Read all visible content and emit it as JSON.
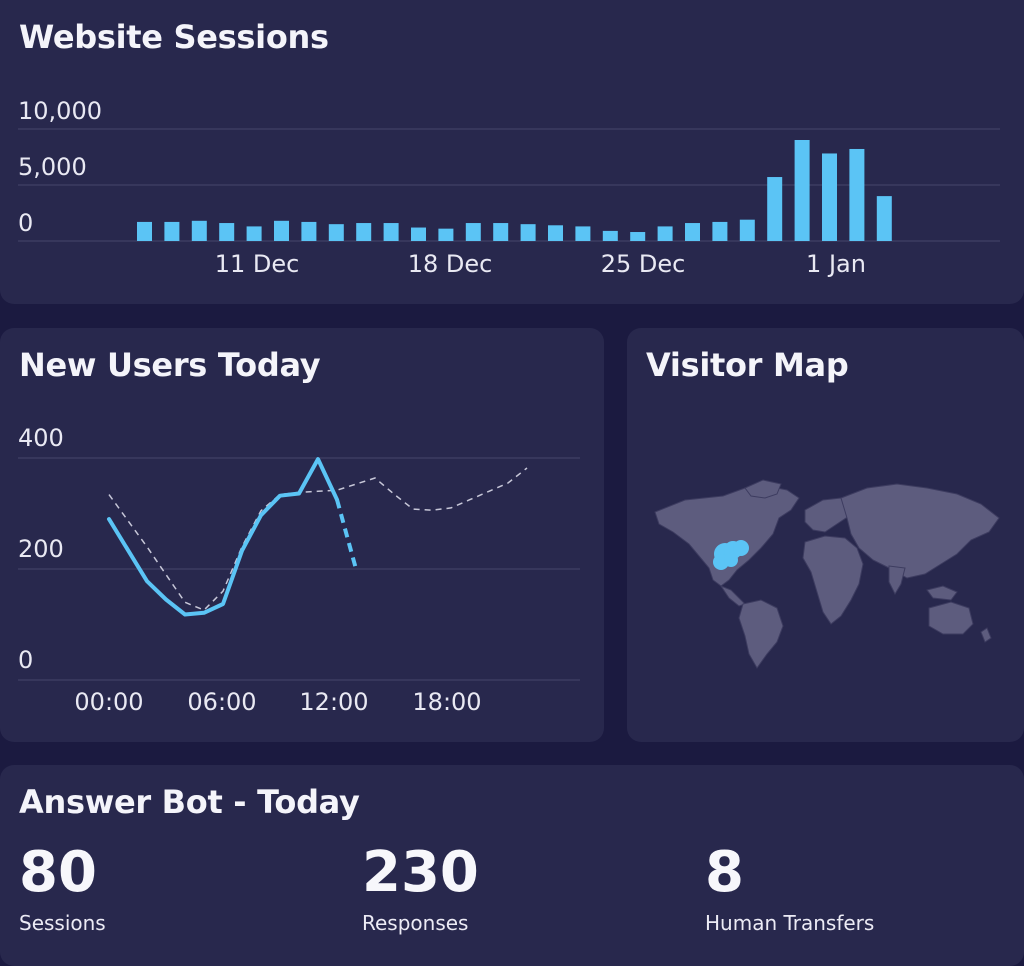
{
  "colors": {
    "background": "#1b1a40",
    "card": "#28284d",
    "accent": "#5bc4f5",
    "grid": "#46466a",
    "land": "#5d5c7e",
    "dashed": "#c7c7d8"
  },
  "website_sessions": {
    "title": "Website Sessions",
    "chart_data": {
      "type": "bar",
      "y_ticks": [
        "10,000",
        "5,000",
        "0"
      ],
      "x_ticks": [
        "11 Dec",
        "18 Dec",
        "25 Dec",
        "1 Jan"
      ],
      "ylim": [
        0,
        12000
      ],
      "values": [
        1700,
        1700,
        1800,
        1600,
        1300,
        1800,
        1700,
        1500,
        1600,
        1600,
        1200,
        1100,
        1600,
        1600,
        1500,
        1400,
        1300,
        900,
        800,
        1300,
        1600,
        1700,
        1900,
        5700,
        9000,
        7800,
        8200,
        4000
      ]
    }
  },
  "new_users_today": {
    "title": "New Users Today",
    "chart_data": {
      "type": "line",
      "y_ticks": [
        "400",
        "200",
        "0"
      ],
      "x_ticks": [
        "00:00",
        "06:00",
        "12:00",
        "18:00"
      ],
      "ylim": [
        0,
        400
      ],
      "xlim": [
        0,
        24
      ],
      "series": [
        {
          "style": "solid",
          "points": [
            [
              0,
              290
            ],
            [
              2,
              178
            ],
            [
              3,
              145
            ],
            [
              4,
              118
            ],
            [
              5,
              121
            ],
            [
              6,
              137
            ],
            [
              7,
              233
            ],
            [
              8,
              297
            ],
            [
              9,
              332
            ],
            [
              10,
              336
            ],
            [
              11,
              398
            ],
            [
              12,
              325
            ]
          ]
        },
        {
          "style": "dashed-accent",
          "points": [
            [
              12,
              325
            ],
            [
              13,
              200
            ]
          ]
        },
        {
          "style": "dashed",
          "points": [
            [
              0,
              334
            ],
            [
              2,
              240
            ],
            [
              3,
              190
            ],
            [
              4,
              140
            ],
            [
              5,
              126
            ],
            [
              6,
              160
            ],
            [
              7,
              240
            ],
            [
              8,
              305
            ],
            [
              9,
              334
            ],
            [
              10,
              338
            ],
            [
              11,
              340
            ],
            [
              12,
              342
            ],
            [
              14,
              364
            ],
            [
              15,
              335
            ],
            [
              16,
              308
            ],
            [
              17,
              306
            ],
            [
              18,
              310
            ],
            [
              19,
              325
            ],
            [
              20,
              340
            ],
            [
              21,
              355
            ],
            [
              22,
              382
            ]
          ]
        }
      ]
    }
  },
  "visitor_map": {
    "title": "Visitor Map"
  },
  "answer_bot": {
    "title": "Answer Bot - Today",
    "stats": [
      {
        "value": "80",
        "label": "Sessions"
      },
      {
        "value": "230",
        "label": "Responses"
      },
      {
        "value": "8",
        "label": "Human Transfers"
      }
    ]
  }
}
